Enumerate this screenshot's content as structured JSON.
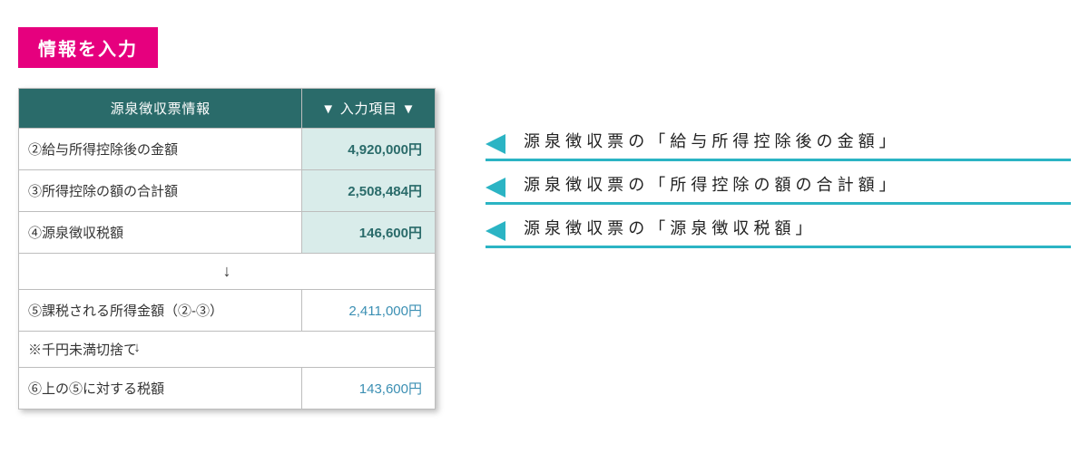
{
  "colors": {
    "badge_bg": "#e6007e",
    "header_bg": "#2a6b6a",
    "highlight_bg": "#d9ecea",
    "value_text": "#2a6b6a",
    "calc_value_text": "#3b8fb3",
    "triangle": "#2bb4c4",
    "underline": "#2bb4c4"
  },
  "badge": {
    "label": "情報を入力"
  },
  "table": {
    "headers": {
      "col1": "源泉徴収票情報",
      "col2": "▼ 入力項目 ▼"
    },
    "rows": [
      {
        "label": "②給与所得控除後の金額",
        "value": "4,920,000円",
        "highlight": true,
        "bold_value": true,
        "value_color": "#2a6b6a"
      },
      {
        "label": "③所得控除の額の合計額",
        "value": "2,508,484円",
        "highlight": true,
        "bold_value": true,
        "value_color": "#2a6b6a"
      },
      {
        "label": "④源泉徴収税額",
        "value": "146,600円",
        "highlight": true,
        "bold_value": true,
        "value_color": "#2a6b6a"
      }
    ],
    "arrow": "↓",
    "row5": {
      "label": "⑤課税される所得金額（②-③）",
      "value": "2,411,000円",
      "value_color": "#3b8fb3"
    },
    "note": "※千円未満切捨て",
    "row6": {
      "label": "⑥上の⑤に対する税額",
      "value": "143,600円",
      "value_color": "#3b8fb3"
    }
  },
  "callouts": [
    {
      "text": "源泉徴収票の「給与所得控除後の金額」"
    },
    {
      "text": "源泉徴収票の「所得控除の額の合計額」"
    },
    {
      "text": "源泉徴収票の「源泉徴収税額」"
    }
  ]
}
